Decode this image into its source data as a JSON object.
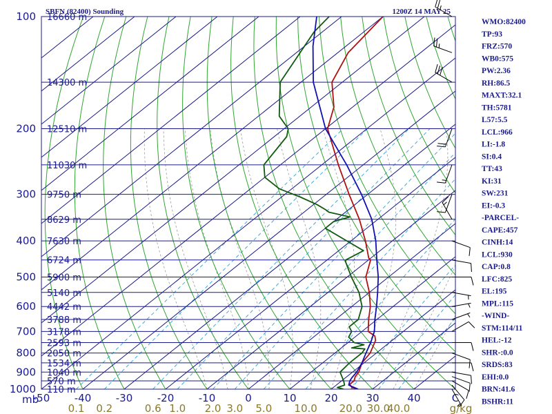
{
  "header": {
    "station": "SBFN (82400) Sounding",
    "time": "1200Z 14 MAY 25"
  },
  "indices": [
    "WMO:82400",
    "TP:93",
    "FRZ:570",
    "WB0:575",
    "PW:2.36",
    "RH:86.5",
    "MAXT:32.1",
    "TH:5781",
    "L57:5.5",
    "LCL:966",
    "LI:-1.8",
    "SI:0.4",
    "TT:43",
    "KI:31",
    "SW:231",
    "EI:-0.3",
    "-PARCEL-",
    "CAPE:457",
    "CINH:14",
    "LCL:930",
    "CAP:0.8",
    "LFC:825",
    "EL:195",
    "MPL:115",
    "-WIND-",
    "STM:114/11",
    "HEL:-12",
    "SHR-:0.0",
    "SRDS:83",
    "EHI:0.0",
    "BRN:41.6",
    "BSHR:11"
  ],
  "colors": {
    "frame": "#1a1a8c",
    "isobar": "#1a1a8c",
    "isotherm": "#1a1a8c",
    "dry_adiabat": "#2fa52f",
    "moist_adiabat": "#9a9a9a",
    "mixing_ratio": "#3fa9d8",
    "temperature": "#b01010",
    "dewpoint": "#0f5a0f",
    "parcel": "#1010b0",
    "wind_barb": "#000000"
  },
  "chart_data": {
    "type": "skew-t",
    "xlabel": "C",
    "ylabel": "mb",
    "xlim": [
      -50,
      50
    ],
    "ylim": [
      1000,
      100
    ],
    "pressure_ticks": [
      100,
      200,
      300,
      400,
      500,
      600,
      700,
      800,
      900,
      1000
    ],
    "temperature_ticks": [
      "-50",
      "-40",
      "-30",
      "-20",
      "-10",
      "0",
      "10",
      "20",
      "30",
      "40"
    ],
    "mixing_ratio_ticks": [
      "0.1",
      "0.2",
      "0.6",
      "1.0",
      "2.0",
      "3.0",
      "5.0",
      "10.0",
      "20.0",
      "30.0",
      "40.0"
    ],
    "mixing_ratio_unit": "g/kg",
    "height_labels": [
      {
        "p": 100,
        "label": "16660 m"
      },
      {
        "p": 150,
        "label": "14300 m"
      },
      {
        "p": 200,
        "label": "12510 m"
      },
      {
        "p": 250,
        "label": "11030 m"
      },
      {
        "p": 300,
        "label": "9750 m"
      },
      {
        "p": 350,
        "label": "8629 m"
      },
      {
        "p": 400,
        "label": "7630 m"
      },
      {
        "p": 450,
        "label": "6724 m"
      },
      {
        "p": 500,
        "label": "5900 m"
      },
      {
        "p": 550,
        "label": "5140 m"
      },
      {
        "p": 600,
        "label": "4442 m"
      },
      {
        "p": 650,
        "label": "3788 m"
      },
      {
        "p": 700,
        "label": "3178 m"
      },
      {
        "p": 750,
        "label": "2593 m"
      },
      {
        "p": 800,
        "label": "2050 m"
      },
      {
        "p": 850,
        "label": "1534 m"
      },
      {
        "p": 900,
        "label": "1040 m"
      },
      {
        "p": 950,
        "label": "570 m"
      },
      {
        "p": 1000,
        "label": "110 m"
      }
    ],
    "series": [
      {
        "values": [
          [
            1000,
            26.5
          ],
          [
            990,
            24.5
          ],
          [
            970,
            23
          ],
          [
            950,
            23
          ],
          [
            925,
            22
          ],
          [
            900,
            21.5
          ],
          [
            850,
            19.5
          ],
          [
            800,
            18.5
          ],
          [
            775,
            17.5
          ],
          [
            740,
            16
          ],
          [
            720,
            14.5
          ],
          [
            700,
            11.5
          ],
          [
            650,
            8
          ],
          [
            600,
            4.5
          ],
          [
            550,
            0
          ],
          [
            500,
            -5.5
          ],
          [
            450,
            -9.5
          ],
          [
            445,
            -10.5
          ],
          [
            400,
            -16.5
          ],
          [
            350,
            -24.5
          ],
          [
            300,
            -34.5
          ],
          [
            250,
            -46
          ],
          [
            200,
            -59.5
          ],
          [
            175,
            -64.5
          ],
          [
            150,
            -72.5
          ],
          [
            125,
            -77.5
          ],
          [
            100,
            -80
          ]
        ]
      },
      {
        "values": [
          [
            1000,
            23
          ],
          [
            990,
            21
          ],
          [
            975,
            22
          ],
          [
            950,
            20.5
          ],
          [
            900,
            17
          ],
          [
            850,
            16.5
          ],
          [
            800,
            16.5
          ],
          [
            780,
            16
          ],
          [
            775,
            12.5
          ],
          [
            760,
            14.5
          ],
          [
            750,
            11.5
          ],
          [
            725,
            8.5
          ],
          [
            700,
            7.5
          ],
          [
            680,
            5.5
          ],
          [
            650,
            5.5
          ],
          [
            600,
            2.5
          ],
          [
            550,
            -2.5
          ],
          [
            500,
            -9
          ],
          [
            455,
            -15
          ],
          [
            450,
            -15.5
          ],
          [
            425,
            -14
          ],
          [
            400,
            -21
          ],
          [
            370,
            -30
          ],
          [
            355,
            -30
          ],
          [
            345,
            -27.5
          ],
          [
            335,
            -34
          ],
          [
            330,
            -35.5
          ],
          [
            320,
            -39
          ],
          [
            305,
            -45.5
          ],
          [
            290,
            -53
          ],
          [
            270,
            -60
          ],
          [
            250,
            -64
          ],
          [
            210,
            -67
          ],
          [
            200,
            -69
          ],
          [
            185,
            -75
          ],
          [
            150,
            -85
          ],
          [
            110,
            -92
          ],
          [
            100,
            -93
          ]
        ]
      },
      {
        "values": [
          [
            1000,
            26.5
          ],
          [
            975,
            23
          ],
          [
            950,
            22
          ],
          [
            930,
            21.5
          ],
          [
            900,
            21
          ],
          [
            850,
            19.5
          ],
          [
            800,
            17.5
          ],
          [
            750,
            15.5
          ],
          [
            700,
            13
          ],
          [
            650,
            9.5
          ],
          [
            600,
            6
          ],
          [
            550,
            2
          ],
          [
            500,
            -2.5
          ],
          [
            450,
            -8
          ],
          [
            400,
            -14
          ],
          [
            350,
            -21.5
          ],
          [
            300,
            -31.5
          ],
          [
            250,
            -44
          ],
          [
            200,
            -60
          ],
          [
            150,
            -77
          ],
          [
            120,
            -88
          ],
          [
            100,
            -96
          ]
        ]
      }
    ],
    "wind_barbs": [
      {
        "p": 1000,
        "dir": 150,
        "spd": 5
      },
      {
        "p": 975,
        "dir": 140,
        "spd": 10
      },
      {
        "p": 950,
        "dir": 120,
        "spd": 10
      },
      {
        "p": 925,
        "dir": 110,
        "spd": 10
      },
      {
        "p": 900,
        "dir": 100,
        "spd": 10
      },
      {
        "p": 850,
        "dir": 90,
        "spd": 10
      },
      {
        "p": 800,
        "dir": 110,
        "spd": 10
      },
      {
        "p": 750,
        "dir": 90,
        "spd": 10
      },
      {
        "p": 700,
        "dir": 60,
        "spd": 10
      },
      {
        "p": 650,
        "dir": 70,
        "spd": 5
      },
      {
        "p": 600,
        "dir": 80,
        "spd": 5
      },
      {
        "p": 550,
        "dir": 100,
        "spd": 5
      },
      {
        "p": 500,
        "dir": 90,
        "spd": 10
      },
      {
        "p": 450,
        "dir": 100,
        "spd": 10
      },
      {
        "p": 400,
        "dir": 110,
        "spd": 10
      },
      {
        "p": 350,
        "dir": 330,
        "spd": 15
      },
      {
        "p": 300,
        "dir": 200,
        "spd": 10
      },
      {
        "p": 250,
        "dir": 200,
        "spd": 15
      },
      {
        "p": 200,
        "dir": 200,
        "spd": 20
      },
      {
        "p": 150,
        "dir": 300,
        "spd": 30
      },
      {
        "p": 125,
        "dir": 290,
        "spd": 25
      },
      {
        "p": 100,
        "dir": 300,
        "spd": 25
      }
    ]
  }
}
